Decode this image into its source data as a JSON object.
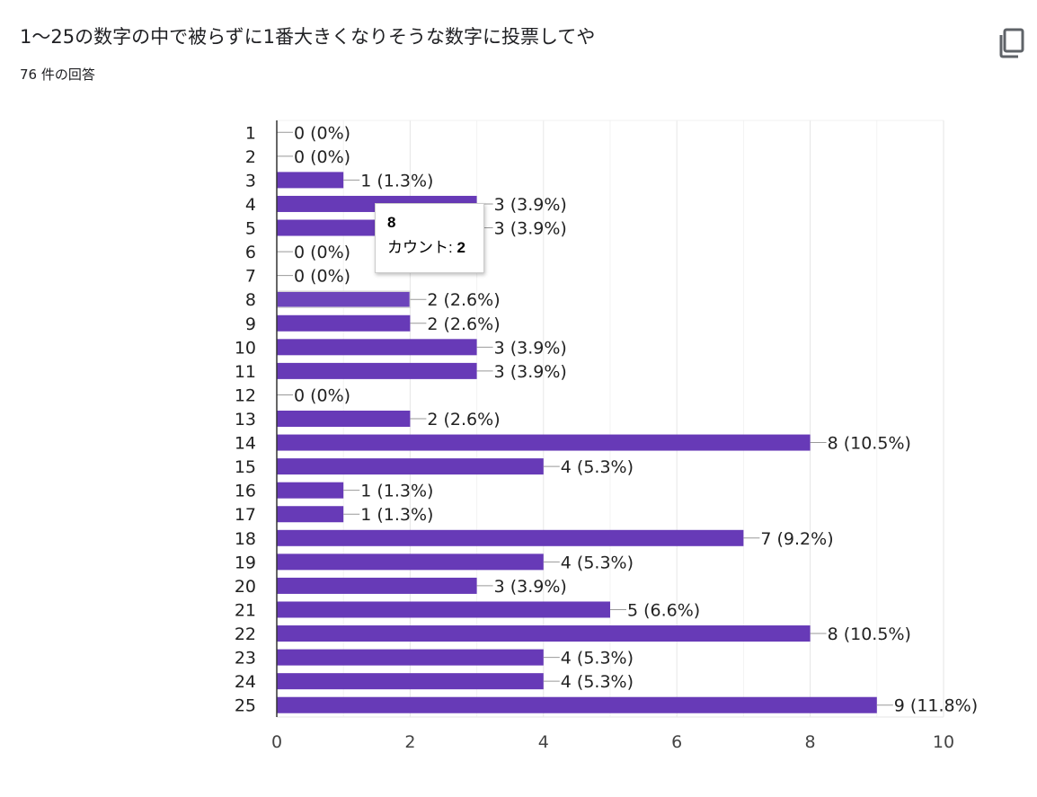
{
  "header": {
    "question": "1〜25の数字の中で被らずに1番大きくなりそうな数字に投票してや",
    "response_count": "76 件の回答",
    "copy_icon": "copy-icon"
  },
  "tooltip": {
    "category": "8",
    "label": "カウント: ",
    "value": "2"
  },
  "colors": {
    "bar": "#673ab7",
    "grid": "#ebebeb",
    "axis": "#333333",
    "text": "#222222"
  },
  "chart_data": {
    "type": "bar",
    "orientation": "horizontal",
    "categories": [
      "1",
      "2",
      "3",
      "4",
      "5",
      "6",
      "7",
      "8",
      "9",
      "10",
      "11",
      "12",
      "13",
      "14",
      "15",
      "16",
      "17",
      "18",
      "19",
      "20",
      "21",
      "22",
      "23",
      "24",
      "25"
    ],
    "values": [
      0,
      0,
      1,
      3,
      3,
      0,
      0,
      2,
      2,
      3,
      3,
      0,
      2,
      8,
      4,
      1,
      1,
      7,
      4,
      3,
      5,
      8,
      4,
      4,
      9
    ],
    "data_labels": [
      "0 (0%)",
      "0 (0%)",
      "1 (1.3%)",
      "3 (3.9%)",
      "3 (3.9%)",
      "0 (0%)",
      "0 (0%)",
      "2 (2.6%)",
      "2 (2.6%)",
      "3 (3.9%)",
      "3 (3.9%)",
      "0 (0%)",
      "2 (2.6%)",
      "8 (10.5%)",
      "4 (5.3%)",
      "1 (1.3%)",
      "1 (1.3%)",
      "7 (9.2%)",
      "4 (5.3%)",
      "3 (3.9%)",
      "5 (6.6%)",
      "8 (10.5%)",
      "4 (5.3%)",
      "4 (5.3%)",
      "9 (11.8%)"
    ],
    "xlim": [
      0,
      10
    ],
    "xticks": [
      0,
      2,
      4,
      6,
      8,
      10
    ],
    "grid": true,
    "highlighted_category": "8"
  }
}
